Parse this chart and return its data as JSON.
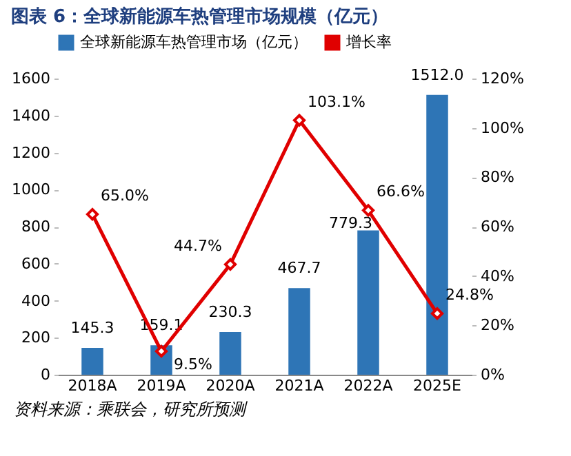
{
  "chart_data": {
    "type": "bar",
    "title": "图表 6：全球新能源车热管理市场规模（亿元）",
    "categories": [
      "2018A",
      "2019A",
      "2020A",
      "2021A",
      "2022A",
      "2025E"
    ],
    "series": [
      {
        "name": "全球新能源车热管理市场（亿元）",
        "color": "#2e75b6",
        "values": [
          145.3,
          159.1,
          230.3,
          467.7,
          779.3,
          1512.0
        ],
        "value_labels": [
          "145.3",
          "159.1",
          "230.3",
          "467.7",
          "779.3",
          "1512.0"
        ]
      },
      {
        "name": "增长率",
        "type": "line",
        "axis": "y2",
        "color": "#e00000",
        "marker": "diamond",
        "values": [
          65.0,
          9.5,
          44.7,
          103.1,
          66.6,
          24.8
        ],
        "value_labels": [
          "65.0%",
          "9.5%",
          "44.7%",
          "103.1%",
          "66.6%",
          "24.8%"
        ]
      }
    ],
    "ylim": [
      0,
      1600
    ],
    "yticks": [
      0,
      200,
      400,
      600,
      800,
      1000,
      1200,
      1400,
      1600
    ],
    "y2lim": [
      0,
      120
    ],
    "y2ticks": [
      {
        "value": 0,
        "label": "0%"
      },
      {
        "value": 20,
        "label": "20%"
      },
      {
        "value": 40,
        "label": "40%"
      },
      {
        "value": 60,
        "label": "60%"
      },
      {
        "value": 80,
        "label": "80%"
      },
      {
        "value": 100,
        "label": "100%"
      },
      {
        "value": 120,
        "label": "120%"
      }
    ],
    "legend": "top",
    "grid": false,
    "annotations": [
      "资料来源：乘联会，研究所预测"
    ]
  }
}
